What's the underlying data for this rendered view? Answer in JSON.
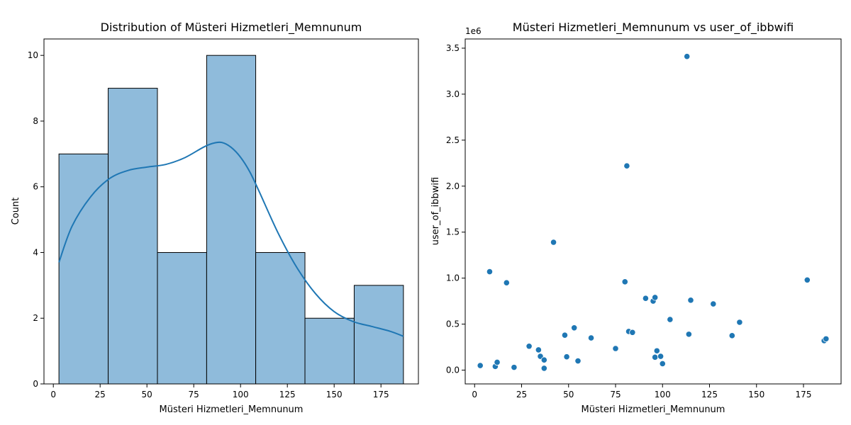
{
  "chart_data": [
    {
      "type": "bar",
      "title": "Distribution of Müsteri Hizmetleri_Memnunum",
      "xlabel": "Müsteri Hizmetleri_Memnunum",
      "ylabel": "Count",
      "bin_edges": [
        3,
        29.3,
        55.6,
        81.9,
        108.1,
        134.4,
        160.7,
        187
      ],
      "counts": [
        7,
        9,
        4,
        10,
        4,
        2,
        3
      ],
      "kde_curve": {
        "x": [
          3,
          10,
          20,
          30,
          40,
          50,
          60,
          70,
          80,
          85,
          90,
          95,
          100,
          105,
          110,
          120,
          130,
          140,
          150,
          160,
          170,
          180,
          187
        ],
        "y": [
          3.7,
          4.8,
          5.7,
          6.25,
          6.5,
          6.6,
          6.68,
          6.88,
          7.2,
          7.32,
          7.35,
          7.2,
          6.9,
          6.45,
          5.85,
          4.6,
          3.55,
          2.75,
          2.2,
          1.9,
          1.75,
          1.6,
          1.45
        ]
      },
      "xlim": [
        -5,
        195
      ],
      "ylim": [
        0,
        10.5
      ],
      "xticks": [
        0,
        25,
        50,
        75,
        100,
        125,
        150,
        175
      ],
      "yticks": [
        0,
        2,
        4,
        6,
        8,
        10
      ],
      "colors": {
        "bar_fill": "#8fbbdb",
        "bar_edge": "#000000",
        "kde_line": "#1f77b4"
      }
    },
    {
      "type": "scatter",
      "title": "Müsteri Hizmetleri_Memnunum vs user_of_ibbwifi",
      "xlabel": "Müsteri Hizmetleri_Memnunum",
      "ylabel": "user_of_ibbwifi",
      "y_offset_label": "1e6",
      "y_unit": 1000000,
      "points": [
        [
          3,
          50000
        ],
        [
          8,
          1070000
        ],
        [
          11,
          40000
        ],
        [
          12,
          85000
        ],
        [
          17,
          950000
        ],
        [
          21,
          30000
        ],
        [
          29,
          260000
        ],
        [
          34,
          220000
        ],
        [
          35,
          150000
        ],
        [
          37,
          110000
        ],
        [
          37,
          20000
        ],
        [
          42,
          1390000
        ],
        [
          48,
          380000
        ],
        [
          49,
          145000
        ],
        [
          53,
          460000
        ],
        [
          55,
          100000
        ],
        [
          62,
          350000
        ],
        [
          75,
          235000
        ],
        [
          80,
          960000
        ],
        [
          81,
          2220000
        ],
        [
          82,
          420000
        ],
        [
          84,
          410000
        ],
        [
          91,
          780000
        ],
        [
          95,
          750000
        ],
        [
          96,
          790000
        ],
        [
          96,
          140000
        ],
        [
          97,
          210000
        ],
        [
          99,
          150000
        ],
        [
          100,
          70000
        ],
        [
          104,
          550000
        ],
        [
          113,
          3410000
        ],
        [
          114,
          390000
        ],
        [
          115,
          760000
        ],
        [
          127,
          720000
        ],
        [
          137,
          375000
        ],
        [
          141,
          520000
        ],
        [
          177,
          980000
        ],
        [
          186,
          320000
        ],
        [
          187,
          340000
        ]
      ],
      "xlim": [
        -5,
        195
      ],
      "ylim": [
        -150000,
        3600000
      ],
      "xticks": [
        0,
        25,
        50,
        75,
        100,
        125,
        150,
        175
      ],
      "yticks": [
        0,
        500000,
        1000000,
        1500000,
        2000000,
        2500000,
        3000000,
        3500000
      ],
      "ytick_labels": [
        "0.0",
        "0.5",
        "1.0",
        "1.5",
        "2.0",
        "2.5",
        "3.0",
        "3.5"
      ],
      "colors": {
        "point": "#1f77b4"
      }
    }
  ]
}
